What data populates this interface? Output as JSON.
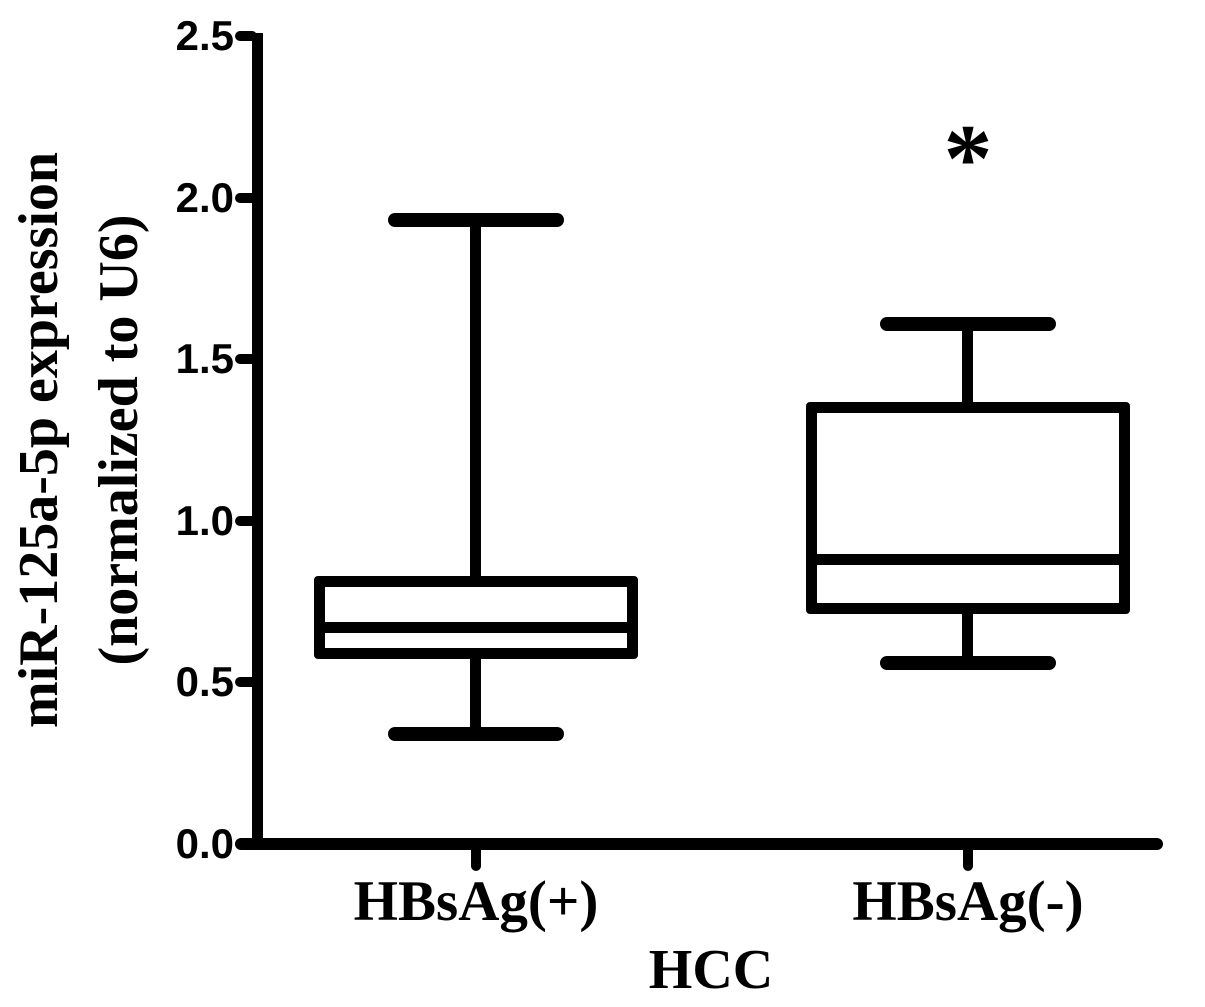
{
  "figure": {
    "background_color": "#ffffff",
    "ink_color": "#000000"
  },
  "chart_data": {
    "type": "box",
    "title": "",
    "xlabel": "HCC",
    "ylabel": "miR-125a-5p expression (normalized to U6)",
    "ylabel_line1": "miR-125a-5p expression",
    "ylabel_line2": "(normalized to U6)",
    "categories": [
      "HBsAg(+)",
      "HBsAg(-)"
    ],
    "ytick_labels": [
      "0.0",
      "0.5",
      "1.0",
      "1.5",
      "2.0",
      "2.5"
    ],
    "ylim": [
      0.0,
      2.5
    ],
    "grid": false,
    "legend": "none",
    "series": [
      {
        "name": "HBsAg(+)",
        "min": 0.34,
        "q1": 0.59,
        "median": 0.67,
        "q3": 0.81,
        "max": 1.93,
        "annotation": ""
      },
      {
        "name": "HBsAg(-)",
        "min": 0.56,
        "q1": 0.73,
        "median": 0.88,
        "q3": 1.35,
        "max": 1.61,
        "annotation": "*"
      }
    ]
  }
}
